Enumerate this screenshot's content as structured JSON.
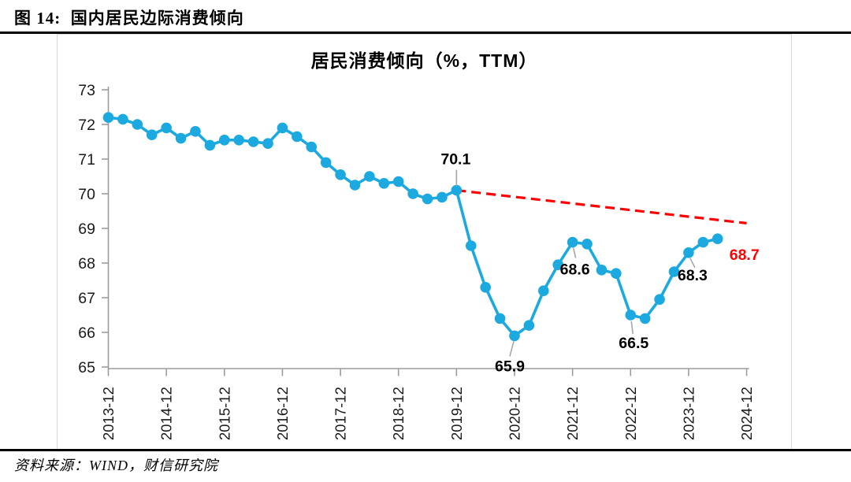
{
  "figure": {
    "caption": "图 14:  国内居民边际消费倾向",
    "source": "资料来源：WIND，财信研究院"
  },
  "colors": {
    "series_blue": "#1BA9E0",
    "trend_red": "#FF0000",
    "axis_gray": "#9c9c9c",
    "leader_gray": "#a6a6a6",
    "frame_gray": "#d9d9d9",
    "tick_text": "#1a1a1a",
    "label_black": "#000000"
  },
  "chart_data": {
    "type": "line",
    "title": "居民消费倾向（%，TTM）",
    "xlabel": "",
    "ylabel": "",
    "ylim": [
      65,
      73
    ],
    "y_ticks": [
      65,
      66,
      67,
      68,
      69,
      70,
      71,
      72,
      73
    ],
    "x_tick_labels": [
      "2013-12",
      "2014-12",
      "2015-12",
      "2016-12",
      "2017-12",
      "2018-12",
      "2019-12",
      "2020-12",
      "2021-12",
      "2022-12",
      "2023-12",
      "2024-12"
    ],
    "grid": false,
    "legend": "none",
    "series": [
      {
        "name": "居民消费倾向（%，TTM）",
        "color": "#1BA9E0",
        "marker": "circle",
        "x": [
          "2013-12",
          "2014-03",
          "2014-06",
          "2014-09",
          "2014-12",
          "2015-03",
          "2015-06",
          "2015-09",
          "2015-12",
          "2016-03",
          "2016-06",
          "2016-09",
          "2016-12",
          "2017-03",
          "2017-06",
          "2017-09",
          "2017-12",
          "2018-03",
          "2018-06",
          "2018-09",
          "2018-12",
          "2019-03",
          "2019-06",
          "2019-09",
          "2019-12",
          "2020-03",
          "2020-06",
          "2020-09",
          "2020-12",
          "2021-03",
          "2021-06",
          "2021-09",
          "2021-12",
          "2022-03",
          "2022-06",
          "2022-09",
          "2022-12",
          "2023-03",
          "2023-06",
          "2023-09",
          "2023-12",
          "2024-03",
          "2024-06"
        ],
        "values": [
          72.2,
          72.15,
          72.0,
          71.7,
          71.9,
          71.6,
          71.8,
          71.4,
          71.55,
          71.55,
          71.5,
          71.45,
          71.9,
          71.65,
          71.35,
          70.9,
          70.55,
          70.25,
          70.5,
          70.3,
          70.35,
          70.0,
          69.85,
          69.9,
          70.1,
          68.5,
          67.3,
          66.4,
          65.9,
          66.2,
          67.2,
          67.95,
          68.6,
          68.55,
          67.8,
          67.7,
          66.5,
          66.4,
          66.95,
          67.75,
          68.3,
          68.6,
          68.7
        ]
      }
    ],
    "trend_line": {
      "style": "dashed",
      "color": "#FF0000",
      "start": {
        "x": "2019-12",
        "value": 70.1
      },
      "end": {
        "x": "2024-12",
        "value": 69.15
      }
    },
    "annotations": [
      {
        "x": "2019-12",
        "text": "70.1",
        "color": "#000000"
      },
      {
        "x": "2020-12",
        "text": "65.9",
        "color": "#000000"
      },
      {
        "x": "2021-12",
        "text": "68.6",
        "color": "#000000"
      },
      {
        "x": "2022-12",
        "text": "66.5",
        "color": "#000000"
      },
      {
        "x": "2023-12",
        "text": "68.3",
        "color": "#000000"
      },
      {
        "x": "2024-06",
        "text": "68.7",
        "color": "#FF0000"
      }
    ]
  }
}
